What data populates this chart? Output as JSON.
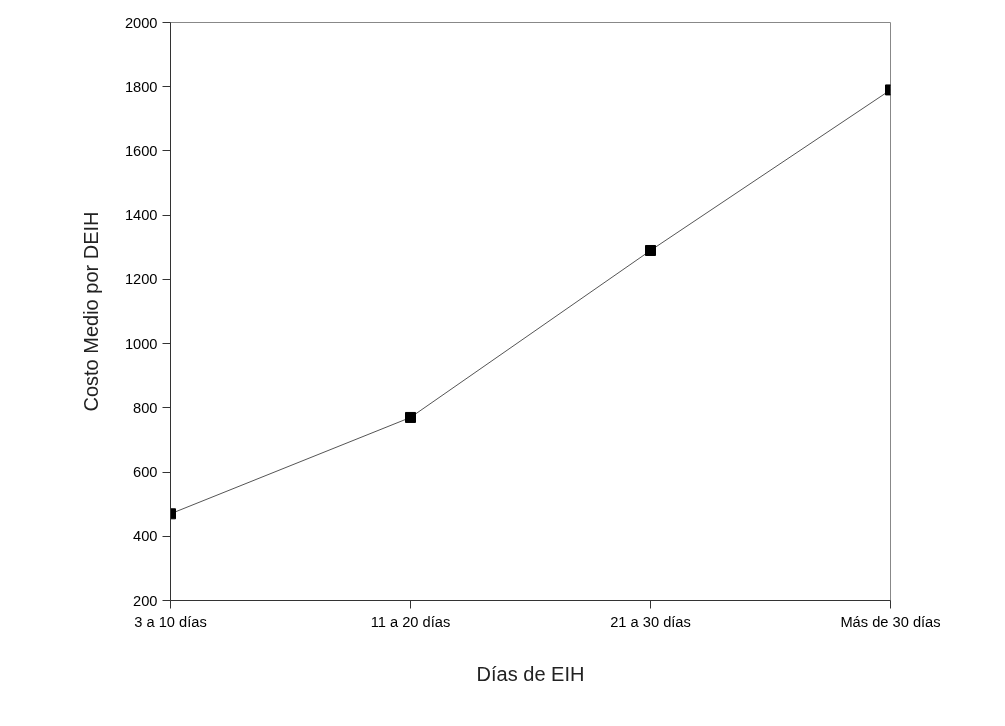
{
  "chart_data": {
    "type": "line",
    "xlabel": "Días de EIH",
    "ylabel": "Costo Medio por DEIH",
    "categories": [
      "3 a 10 días",
      "11 a 20 días",
      "21 a 30 días",
      "Más de 30 días"
    ],
    "values": [
      470,
      770,
      1290,
      1790
    ],
    "color": "#000000",
    "marker": "square",
    "line_style": "solid",
    "ylim": [
      200,
      2000
    ],
    "yticks": [
      200,
      400,
      600,
      800,
      1000,
      1200,
      1400,
      1600,
      1800,
      2000
    ],
    "grid": false
  }
}
